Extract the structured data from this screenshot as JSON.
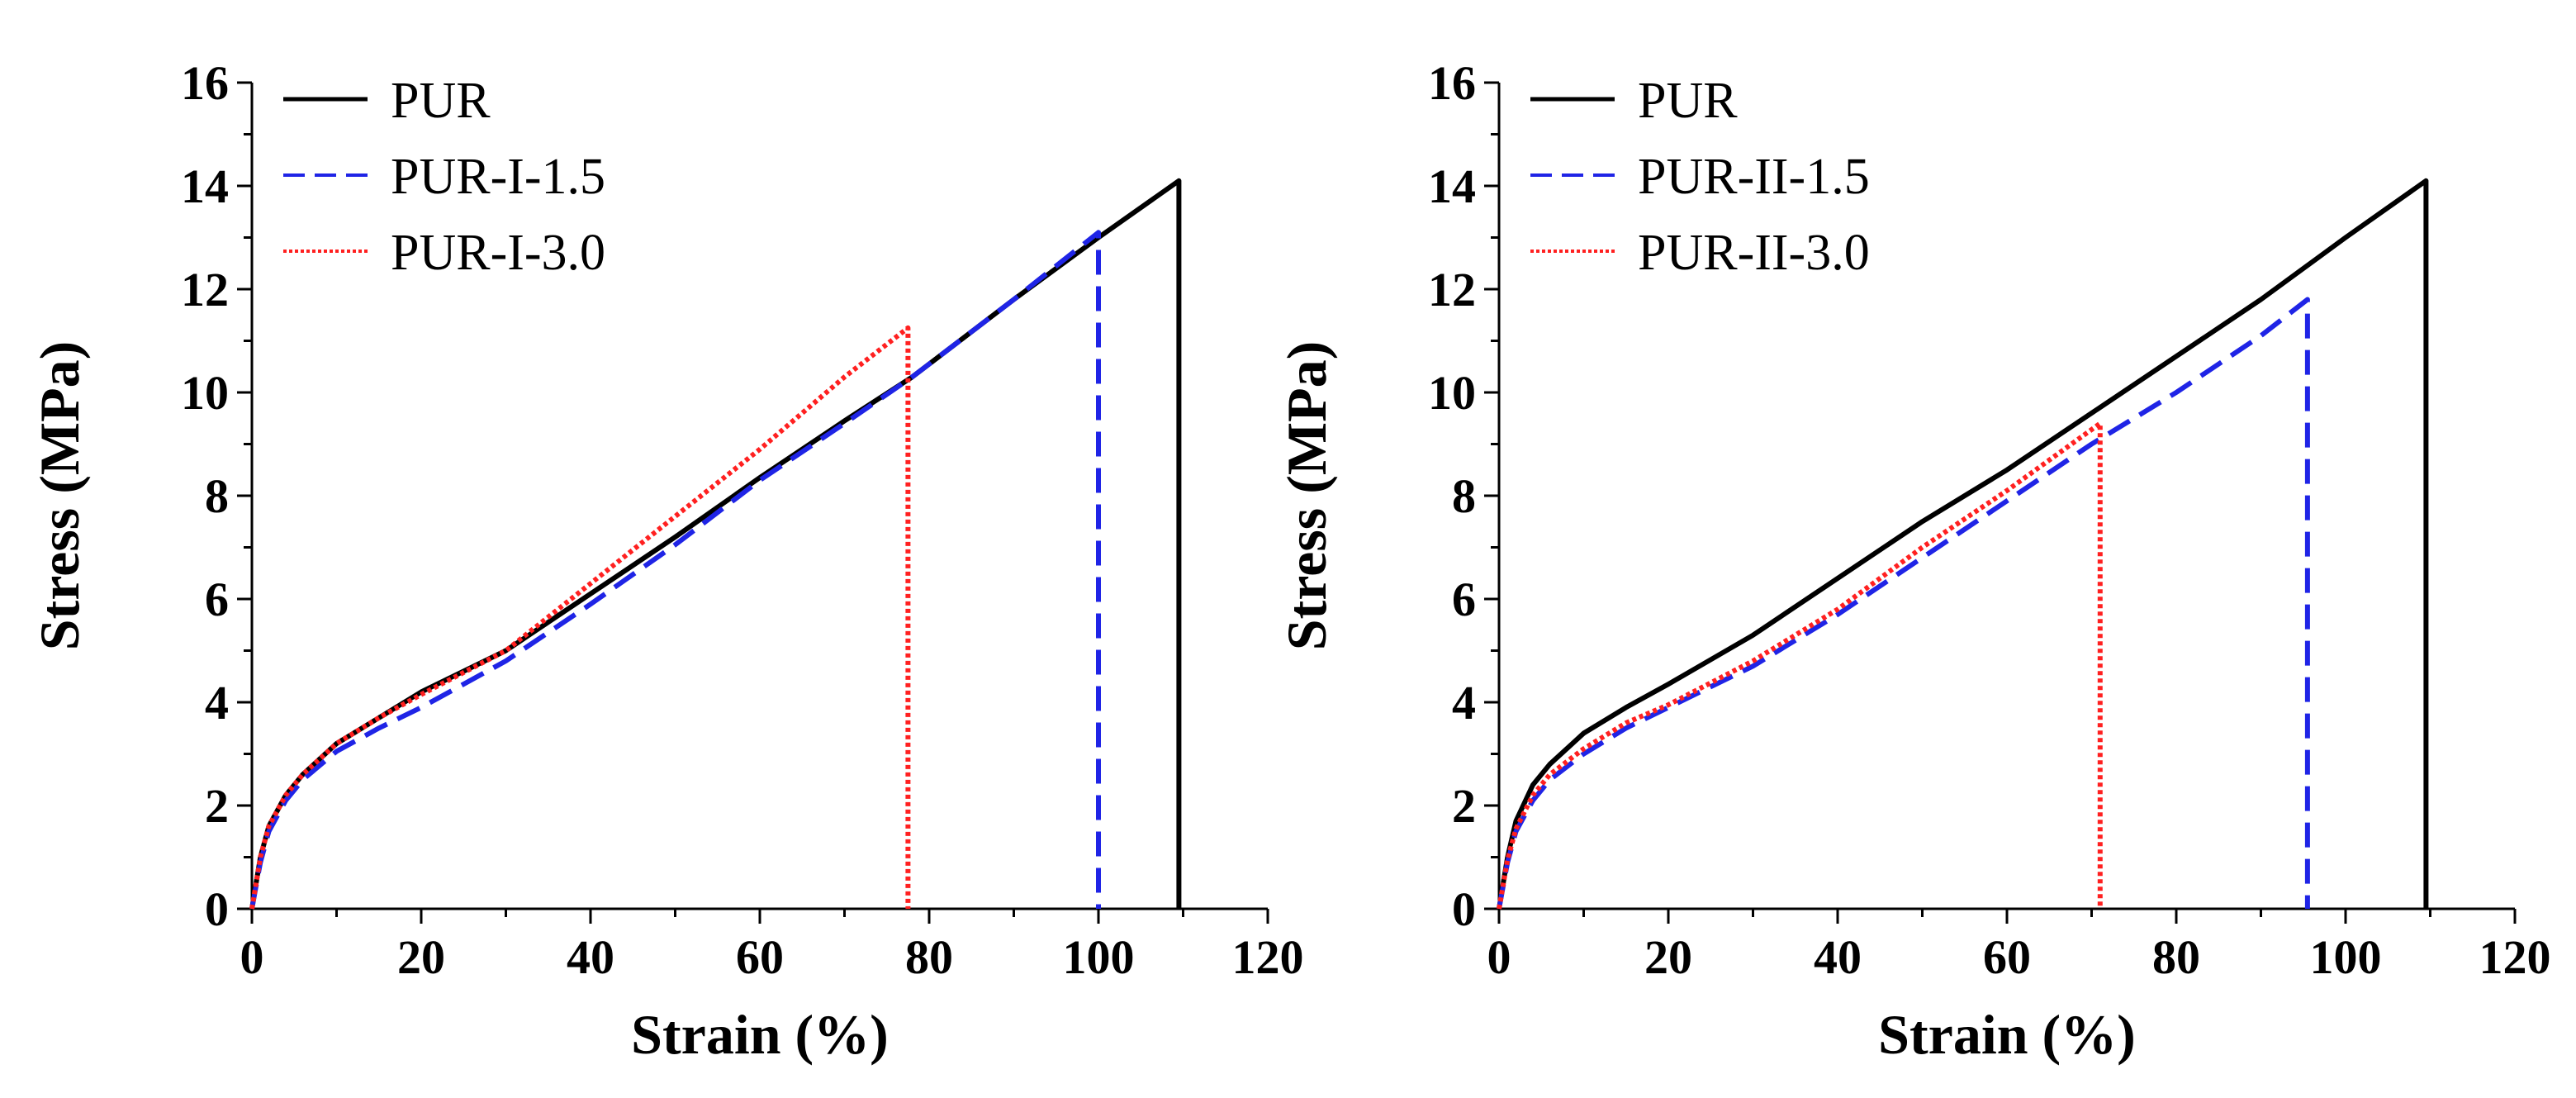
{
  "chart_data": [
    {
      "type": "line",
      "xlabel": "Strain (%)",
      "ylabel": "Stress (MPa)",
      "xlim": [
        0,
        120
      ],
      "ylim": [
        0,
        16
      ],
      "xticks": [
        0,
        20,
        40,
        60,
        80,
        100,
        120
      ],
      "yticks": [
        0,
        2,
        4,
        6,
        8,
        10,
        12,
        14,
        16
      ],
      "legend_position": "top-left",
      "series": [
        {
          "name": "PUR",
          "color": "#000000",
          "style": "solid",
          "points": [
            [
              0,
              0
            ],
            [
              1,
              1.0
            ],
            [
              2,
              1.6
            ],
            [
              4,
              2.2
            ],
            [
              6,
              2.6
            ],
            [
              10,
              3.2
            ],
            [
              15,
              3.7
            ],
            [
              20,
              4.2
            ],
            [
              30,
              5.0
            ],
            [
              40,
              6.1
            ],
            [
              50,
              7.2
            ],
            [
              60,
              8.35
            ],
            [
              70,
              9.45
            ],
            [
              78,
              10.3
            ],
            [
              90,
              11.8
            ],
            [
              100,
              13.0
            ],
            [
              109.5,
              14.1
            ],
            [
              109.5,
              0
            ]
          ]
        },
        {
          "name": "PUR-I-1.5",
          "color": "#1f24e6",
          "style": "dashed",
          "points": [
            [
              0,
              0
            ],
            [
              1,
              0.9
            ],
            [
              2,
              1.5
            ],
            [
              4,
              2.1
            ],
            [
              6,
              2.5
            ],
            [
              10,
              3.05
            ],
            [
              15,
              3.5
            ],
            [
              20,
              3.9
            ],
            [
              30,
              4.8
            ],
            [
              40,
              5.9
            ],
            [
              50,
              7.05
            ],
            [
              60,
              8.3
            ],
            [
              70,
              9.4
            ],
            [
              78,
              10.3
            ],
            [
              90,
              11.8
            ],
            [
              100,
              13.1
            ],
            [
              100,
              0
            ]
          ]
        },
        {
          "name": "PUR-I-3.0",
          "color": "#ff2020",
          "style": "dotted",
          "points": [
            [
              0,
              0
            ],
            [
              1,
              1.0
            ],
            [
              2,
              1.6
            ],
            [
              4,
              2.2
            ],
            [
              6,
              2.6
            ],
            [
              10,
              3.2
            ],
            [
              15,
              3.7
            ],
            [
              20,
              4.15
            ],
            [
              30,
              5.0
            ],
            [
              40,
              6.3
            ],
            [
              50,
              7.6
            ],
            [
              60,
              8.9
            ],
            [
              70,
              10.3
            ],
            [
              77.5,
              11.25
            ],
            [
              77.5,
              0
            ]
          ]
        }
      ]
    },
    {
      "type": "line",
      "xlabel": "Strain (%)",
      "ylabel": "Stress (MPa)",
      "xlim": [
        0,
        120
      ],
      "ylim": [
        0,
        16
      ],
      "xticks": [
        0,
        20,
        40,
        60,
        80,
        100,
        120
      ],
      "yticks": [
        0,
        2,
        4,
        6,
        8,
        10,
        12,
        14,
        16
      ],
      "legend_position": "top-left",
      "series": [
        {
          "name": "PUR",
          "color": "#000000",
          "style": "solid",
          "points": [
            [
              0,
              0
            ],
            [
              1,
              1.0
            ],
            [
              2,
              1.7
            ],
            [
              4,
              2.4
            ],
            [
              6,
              2.8
            ],
            [
              10,
              3.4
            ],
            [
              15,
              3.9
            ],
            [
              20,
              4.35
            ],
            [
              30,
              5.3
            ],
            [
              40,
              6.4
            ],
            [
              50,
              7.5
            ],
            [
              60,
              8.5
            ],
            [
              70,
              9.6
            ],
            [
              80,
              10.7
            ],
            [
              90,
              11.8
            ],
            [
              100,
              13.0
            ],
            [
              109.5,
              14.1
            ],
            [
              109.5,
              0
            ]
          ]
        },
        {
          "name": "PUR-II-1.5",
          "color": "#1f24e6",
          "style": "dashed",
          "points": [
            [
              0,
              0
            ],
            [
              1,
              0.9
            ],
            [
              2,
              1.5
            ],
            [
              4,
              2.1
            ],
            [
              6,
              2.5
            ],
            [
              10,
              3.0
            ],
            [
              15,
              3.5
            ],
            [
              20,
              3.9
            ],
            [
              30,
              4.7
            ],
            [
              40,
              5.7
            ],
            [
              50,
              6.8
            ],
            [
              60,
              7.9
            ],
            [
              70,
              9.0
            ],
            [
              80,
              10.0
            ],
            [
              90,
              11.1
            ],
            [
              95.5,
              11.8
            ],
            [
              95.5,
              0
            ]
          ]
        },
        {
          "name": "PUR-II-3.0",
          "color": "#ff2020",
          "style": "dotted",
          "points": [
            [
              0,
              0
            ],
            [
              1,
              0.95
            ],
            [
              2,
              1.55
            ],
            [
              4,
              2.2
            ],
            [
              6,
              2.6
            ],
            [
              10,
              3.1
            ],
            [
              15,
              3.6
            ],
            [
              20,
              3.95
            ],
            [
              30,
              4.8
            ],
            [
              40,
              5.8
            ],
            [
              50,
              7.0
            ],
            [
              60,
              8.1
            ],
            [
              71,
              9.4
            ],
            [
              71,
              0
            ]
          ]
        }
      ]
    }
  ]
}
